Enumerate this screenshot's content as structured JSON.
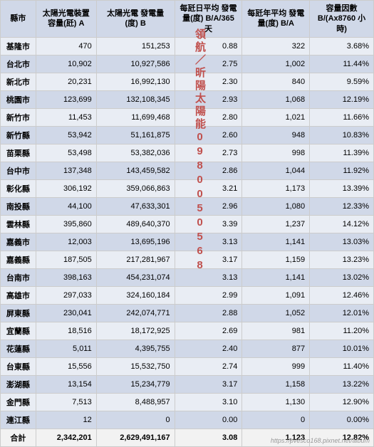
{
  "headers": {
    "city": "縣市",
    "capacity": "太陽光電裝置\n容量(瓩)\nA",
    "generation": "太陽光電\n發電量(度)\nB",
    "daily": "每瓩日平均\n發電量(度)\nB/A/365天",
    "yearly": "每瓩年平均\n發電量(度)\nB/A",
    "factor": "容量因數\nB/(Ax8760\n小時)"
  },
  "rows": [
    {
      "city": "基隆市",
      "cap": "470",
      "gen": "151,253",
      "day": "0.88",
      "year": "322",
      "factor": "3.68%"
    },
    {
      "city": "台北市",
      "cap": "10,902",
      "gen": "10,927,586",
      "day": "2.75",
      "year": "1,002",
      "factor": "11.44%"
    },
    {
      "city": "新北市",
      "cap": "20,231",
      "gen": "16,992,130",
      "day": "2.30",
      "year": "840",
      "factor": "9.59%"
    },
    {
      "city": "桃園市",
      "cap": "123,699",
      "gen": "132,108,345",
      "day": "2.93",
      "year": "1,068",
      "factor": "12.19%"
    },
    {
      "city": "新竹市",
      "cap": "11,453",
      "gen": "11,699,468",
      "day": "2.80",
      "year": "1,021",
      "factor": "11.66%"
    },
    {
      "city": "新竹縣",
      "cap": "53,942",
      "gen": "51,161,875",
      "day": "2.60",
      "year": "948",
      "factor": "10.83%"
    },
    {
      "city": "苗栗縣",
      "cap": "53,498",
      "gen": "53,382,036",
      "day": "2.73",
      "year": "998",
      "factor": "11.39%"
    },
    {
      "city": "台中市",
      "cap": "137,348",
      "gen": "143,459,582",
      "day": "2.86",
      "year": "1,044",
      "factor": "11.92%"
    },
    {
      "city": "彰化縣",
      "cap": "306,192",
      "gen": "359,066,863",
      "day": "3.21",
      "year": "1,173",
      "factor": "13.39%"
    },
    {
      "city": "南投縣",
      "cap": "44,100",
      "gen": "47,633,301",
      "day": "2.96",
      "year": "1,080",
      "factor": "12.33%"
    },
    {
      "city": "雲林縣",
      "cap": "395,860",
      "gen": "489,640,370",
      "day": "3.39",
      "year": "1,237",
      "factor": "14.12%"
    },
    {
      "city": "嘉義市",
      "cap": "12,003",
      "gen": "13,695,196",
      "day": "3.13",
      "year": "1,141",
      "factor": "13.03%"
    },
    {
      "city": "嘉義縣",
      "cap": "187,505",
      "gen": "217,281,967",
      "day": "3.17",
      "year": "1,159",
      "factor": "13.23%"
    },
    {
      "city": "台南市",
      "cap": "398,163",
      "gen": "454,231,074",
      "day": "3.13",
      "year": "1,141",
      "factor": "13.02%"
    },
    {
      "city": "高雄市",
      "cap": "297,033",
      "gen": "324,160,184",
      "day": "2.99",
      "year": "1,091",
      "factor": "12.46%"
    },
    {
      "city": "屏東縣",
      "cap": "230,041",
      "gen": "242,074,771",
      "day": "2.88",
      "year": "1,052",
      "factor": "12.01%"
    },
    {
      "city": "宜蘭縣",
      "cap": "18,516",
      "gen": "18,172,925",
      "day": "2.69",
      "year": "981",
      "factor": "11.20%"
    },
    {
      "city": "花蓮縣",
      "cap": "5,011",
      "gen": "4,395,755",
      "day": "2.40",
      "year": "877",
      "factor": "10.01%"
    },
    {
      "city": "台東縣",
      "cap": "15,556",
      "gen": "15,532,750",
      "day": "2.74",
      "year": "999",
      "factor": "11.40%"
    },
    {
      "city": "澎湖縣",
      "cap": "13,154",
      "gen": "15,234,779",
      "day": "3.17",
      "year": "1,158",
      "factor": "13.22%"
    },
    {
      "city": "金門縣",
      "cap": "7,513",
      "gen": "8,488,957",
      "day": "3.10",
      "year": "1,130",
      "factor": "12.90%"
    },
    {
      "city": "連江縣",
      "cap": "12",
      "gen": "0",
      "day": "0.00",
      "year": "0",
      "factor": "0.00%"
    }
  ],
  "total": {
    "city": "合計",
    "cap": "2,342,201",
    "gen": "2,629,491,167",
    "day": "3.08",
    "year": "1,123",
    "factor": "12.82%"
  },
  "watermark": "領航／昕陽太陽能0980050568",
  "url": "https://pvesco168.pixnet.net/album"
}
